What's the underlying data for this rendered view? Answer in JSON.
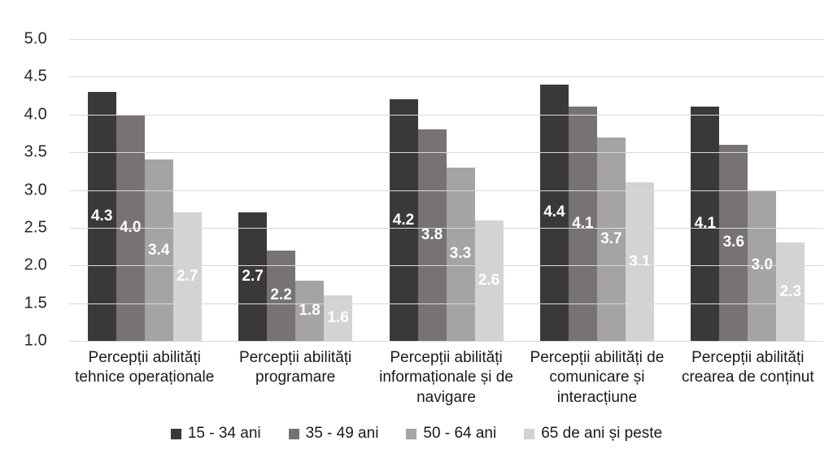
{
  "chart_data": {
    "type": "bar",
    "title": "",
    "categories": [
      "Percepții abilități tehnice operaționale",
      "Percepții abilități programare",
      "Percepții abilități informaționale și de navigare",
      "Percepții abilități de comunicare și interacțiune",
      "Percepții abilități crearea de conținut"
    ],
    "series": [
      {
        "name": "15 - 34 ani",
        "color": "#3b3838",
        "values": [
          4.3,
          2.7,
          4.2,
          4.4,
          4.1
        ]
      },
      {
        "name": "35 - 49 ani",
        "color": "#777373",
        "values": [
          4.0,
          2.2,
          3.8,
          4.1,
          3.6
        ]
      },
      {
        "name": "50 - 64 ani",
        "color": "#a6a3a3",
        "values": [
          3.4,
          1.8,
          3.3,
          3.7,
          3.0
        ]
      },
      {
        "name": "65 de ani și peste",
        "color": "#d4d2d2",
        "values": [
          2.7,
          1.6,
          2.6,
          3.1,
          2.3
        ]
      }
    ],
    "ylim": [
      1.0,
      5.0
    ],
    "ytick_step": 0.5,
    "yticks": [
      "5.0",
      "4.5",
      "4.0",
      "3.5",
      "3.0",
      "2.5",
      "2.0",
      "1.5",
      "1.0"
    ],
    "grid": true,
    "gridline_color": "#d9d9d9",
    "data_label_color": "#ffffff",
    "legend_position": "bottom",
    "legend_labels": [
      "15 - 34 ani",
      "35 - 49 ani",
      "50 - 64 ani",
      "65 de ani și peste"
    ]
  }
}
